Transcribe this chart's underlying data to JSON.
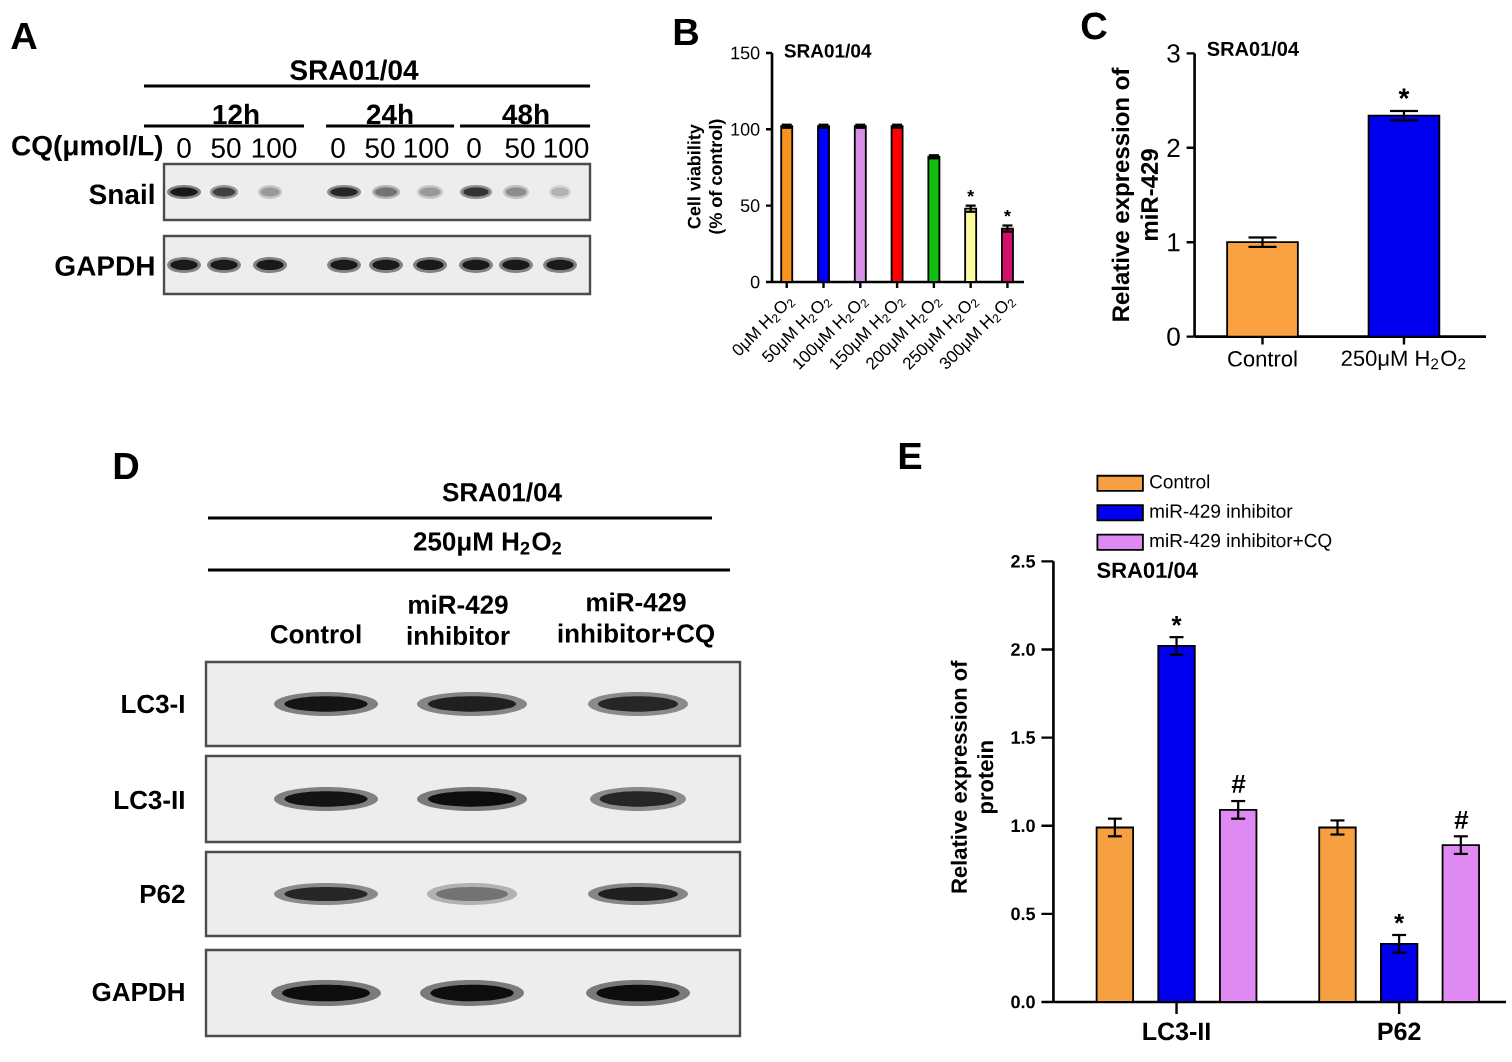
{
  "chart_data": [
    {
      "type": "other",
      "title": "SRA01/04",
      "annotations": [
        "A",
        "12h",
        "24h",
        "48h",
        "CQ(μmol/L)",
        "0",
        "50",
        "100",
        "0",
        "50",
        "100",
        "0",
        "50",
        "100",
        "Snail",
        "GAPDH"
      ]
    },
    {
      "type": "bar",
      "title": "SRA01/04",
      "ylabel": "Cell viability\n(% of control)",
      "categories": [
        "0μM H$_{2}$O$_{2}$",
        "50μM H$_{2}$O$_{2}$",
        "100μM H$_{2}$O$_{2}$",
        "150μM H$_{2}$O$_{2}$",
        "200μM H$_{2}$O$_{2}$",
        "250μM H$_{2}$O$_{2}$",
        "300μM H$_{2}$O$_{2}$"
      ],
      "values": [
        102,
        102,
        102,
        102,
        82,
        48,
        35
      ],
      "errors": [
        1,
        1,
        1,
        1,
        1,
        2,
        2
      ],
      "colors": [
        "#f7931e",
        "#0000ff",
        "#d68ee6",
        "#ff0000",
        "#10c010",
        "#fafaa0",
        "#d0106a"
      ],
      "ylim": [
        0,
        150
      ],
      "yticks": [
        0,
        50,
        100,
        150
      ],
      "annotations": [
        "B",
        {
          "text": "*",
          "x": "250μM H$_{2}$O$_{2}$",
          "y": 50
        },
        {
          "text": "*",
          "x": "300μM H$_{2}$O$_{2}$",
          "y": 37
        }
      ]
    },
    {
      "type": "bar",
      "title": "SRA01/04",
      "ylabel": "Relative expression of\nmiR-429",
      "categories": [
        "Control",
        "250μM H$_{2}$O$_{2}$"
      ],
      "values": [
        1.0,
        2.34
      ],
      "errors": [
        0.05,
        0.05
      ],
      "colors": [
        "#f9a040",
        "#0000ee"
      ],
      "ylim": [
        0,
        3
      ],
      "yticks": [
        0,
        1,
        2,
        3
      ],
      "annotations": [
        "C",
        {
          "text": "*",
          "x": "250μM H$_{2}$O$_{2}$",
          "y": 2.39
        }
      ]
    },
    {
      "type": "other",
      "title": "SRA01/04",
      "subtitle": "250μM H$_{2}$O$_{2}$",
      "annotations": [
        "D",
        "Control",
        "miR-429\ninhibitor",
        "miR-429\ninhibitor+CQ",
        "LC3-I",
        "LC3-II",
        "P62",
        "GAPDH"
      ]
    },
    {
      "type": "bar",
      "title": "SRA01/04",
      "ylabel": "Relative expression of\nprotein",
      "categories": [
        "LC3-II",
        "P62"
      ],
      "series": [
        {
          "name": "Control",
          "color": "#f6a041",
          "values": [
            0.99,
            0.99
          ],
          "errors": [
            0.05,
            0.04
          ]
        },
        {
          "name": "miR-429 inhibitor",
          "color": "#0000ee",
          "values": [
            2.02,
            0.33
          ],
          "errors": [
            0.05,
            0.05
          ]
        },
        {
          "name": "miR-429 inhibitor+CQ",
          "color": "#df8af2",
          "values": [
            1.09,
            0.89
          ],
          "errors": [
            0.05,
            0.05
          ]
        }
      ],
      "ylim": [
        0,
        2.5
      ],
      "yticks": [
        {
          "value": 0,
          "label": "0.0"
        },
        0.5,
        {
          "value": 1,
          "label": "1.0"
        },
        1.5,
        {
          "value": 2,
          "label": "2.0"
        },
        2.5
      ],
      "legend": "top left",
      "annotations": [
        "E",
        {
          "text": "*",
          "x": "LC3-II",
          "y": 2.07
        },
        "#",
        {
          "text": "*",
          "x": "P62",
          "y": 0.38
        },
        "#"
      ]
    }
  ]
}
